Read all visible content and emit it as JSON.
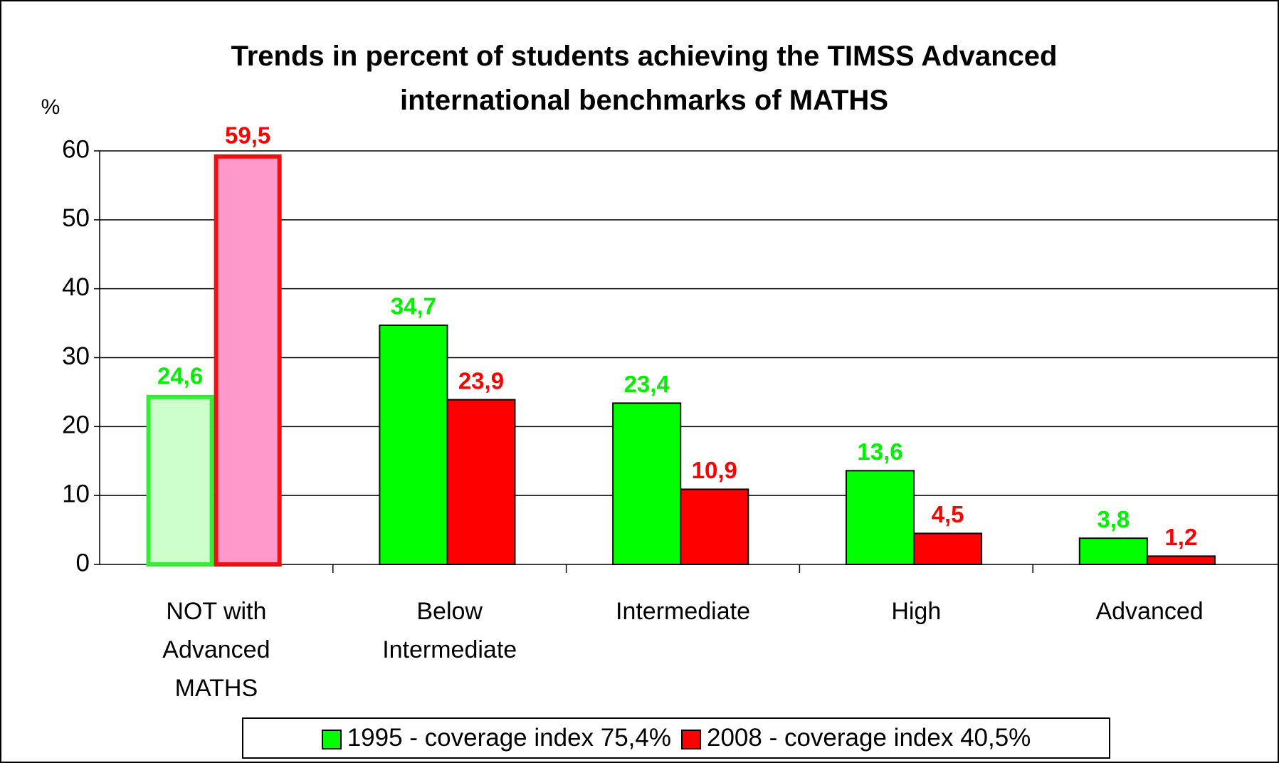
{
  "chart_data": {
    "type": "bar",
    "title": "Trends in percent of students achieving the TIMSS Advanced international benchmarks of MATHS",
    "y_axis_label": "%",
    "categories": [
      "NOT with Advanced MATHS",
      "Below Intermediate",
      "Intermediate",
      "High",
      "Advanced"
    ],
    "series": [
      {
        "name": "1995 - coverage index 75,4%",
        "color": "#00ff00",
        "label_color": "#00ee00",
        "colors": [
          "#ccffcc",
          "#00ff00",
          "#00ff00",
          "#00ff00",
          "#00ff00"
        ],
        "edge_colors": [
          "#33ee33",
          "#000000",
          "#000000",
          "#000000",
          "#000000"
        ],
        "values": [
          24.6,
          34.7,
          23.4,
          13.6,
          3.8
        ],
        "value_labels": [
          "24,6",
          "34,7",
          "23,4",
          "13,6",
          "3,8"
        ]
      },
      {
        "name": "2008 - coverage index 40,5%",
        "color": "#ff0000",
        "label_color": "#ff0000",
        "colors": [
          "#ff99cc",
          "#ff0000",
          "#ff0000",
          "#ff0000",
          "#ff0000"
        ],
        "edge_colors": [
          "#ee1111",
          "#000000",
          "#000000",
          "#000000",
          "#000000"
        ],
        "values": [
          59.5,
          23.9,
          10.9,
          4.5,
          1.2
        ],
        "value_labels": [
          "59,5",
          "23,9",
          "10,9",
          "4,5",
          "1,2"
        ]
      }
    ],
    "ylim": [
      0,
      60
    ],
    "yticks": [
      0,
      10,
      20,
      30,
      40,
      50,
      60
    ],
    "grid": true,
    "legend": "bottom"
  }
}
